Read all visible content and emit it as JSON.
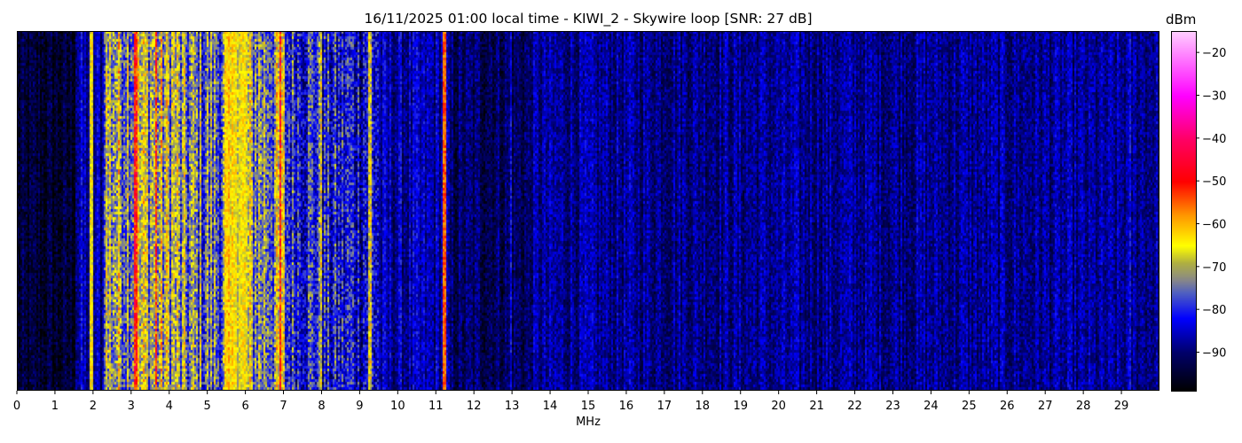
{
  "chart_data": {
    "type": "heatmap",
    "title": "16/11/2025 01:00 local time - KIWI_2 - Skywire loop [SNR: 27 dB]",
    "xlabel": "MHz",
    "ylabel": "",
    "xlim": [
      0,
      30
    ],
    "x_ticks": [
      "0",
      "1",
      "2",
      "3",
      "4",
      "5",
      "6",
      "7",
      "8",
      "9",
      "10",
      "11",
      "12",
      "13",
      "14",
      "15",
      "16",
      "17",
      "18",
      "19",
      "20",
      "21",
      "22",
      "23",
      "24",
      "25",
      "26",
      "27",
      "28",
      "29"
    ],
    "colorbar": {
      "label": "dBm",
      "range": [
        -99,
        -15
      ],
      "ticks": [
        "−20",
        "−30",
        "−40",
        "−50",
        "−60",
        "−70",
        "−80",
        "−90"
      ],
      "tick_values": [
        -20,
        -30,
        -40,
        -50,
        -60,
        -70,
        -80,
        -90
      ],
      "colormap_stops": [
        {
          "v": -99,
          "color": "#000000"
        },
        {
          "v": -90,
          "color": "#00006a"
        },
        {
          "v": -82,
          "color": "#0000ff"
        },
        {
          "v": -76,
          "color": "#5060c0"
        },
        {
          "v": -73,
          "color": "#888888"
        },
        {
          "v": -69,
          "color": "#b0b040"
        },
        {
          "v": -65,
          "color": "#ffff00"
        },
        {
          "v": -58,
          "color": "#ff9900"
        },
        {
          "v": -50,
          "color": "#ff0000"
        },
        {
          "v": -40,
          "color": "#ff0066"
        },
        {
          "v": -30,
          "color": "#ff00ff"
        },
        {
          "v": -15,
          "color": "#ffccff"
        }
      ]
    },
    "bands_dbm": [
      {
        "from": 0,
        "to": 1.5,
        "level": -95,
        "spread": 4
      },
      {
        "from": 1.5,
        "to": 2.25,
        "level": -87,
        "spread": 6
      },
      {
        "from": 2.25,
        "to": 4.2,
        "level": -70,
        "spread": 10
      },
      {
        "from": 4.2,
        "to": 5.45,
        "level": -75,
        "spread": 10
      },
      {
        "from": 5.45,
        "to": 6.05,
        "level": -66,
        "spread": 6
      },
      {
        "from": 6.05,
        "to": 7.0,
        "level": -72,
        "spread": 10
      },
      {
        "from": 7.0,
        "to": 8.0,
        "level": -79,
        "spread": 8
      },
      {
        "from": 8.0,
        "to": 9.5,
        "level": -82,
        "spread": 8
      },
      {
        "from": 9.5,
        "to": 11.3,
        "level": -87,
        "spread": 5
      },
      {
        "from": 11.3,
        "to": 13.5,
        "level": -91,
        "spread": 4
      },
      {
        "from": 13.5,
        "to": 30,
        "level": -88,
        "spread": 4
      }
    ],
    "carriers_dbm": [
      {
        "f": 1.93,
        "level": -65
      },
      {
        "f": 3.1,
        "level": -50
      },
      {
        "f": 3.65,
        "level": -52
      },
      {
        "f": 5.7,
        "level": -64
      },
      {
        "f": 6.9,
        "level": -50
      },
      {
        "f": 7.95,
        "level": -66
      },
      {
        "f": 9.25,
        "level": -66
      },
      {
        "f": 11.2,
        "level": -55
      },
      {
        "f": 12.95,
        "level": -82
      },
      {
        "f": 29.2,
        "level": -82
      }
    ]
  }
}
